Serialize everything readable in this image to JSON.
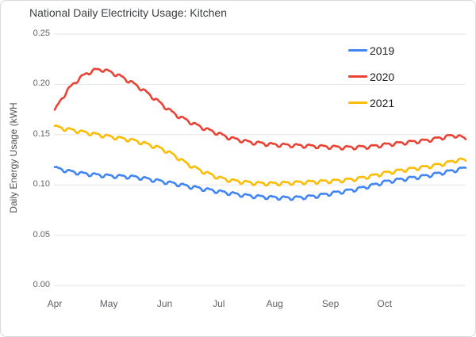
{
  "chart_data": {
    "type": "line",
    "title": "National Daily Electricity Usage: Kitchen",
    "xlabel": "",
    "ylabel": "Daily Energy Usage (kWH",
    "ylim": [
      0,
      0.25
    ],
    "yticks": [
      0,
      0.05,
      0.1,
      0.15,
      0.2,
      0.25
    ],
    "ytick_labels": [
      "0.00",
      "0.05",
      "0.10",
      "0.15",
      "0.20",
      "0.25"
    ],
    "grid": "horizontal",
    "legend_position": "top-right",
    "x_unit": "days since Apr 1",
    "x_range_days": [
      0,
      228
    ],
    "xticks": [
      {
        "label": "Apr",
        "day": 0
      },
      {
        "label": "May",
        "day": 30
      },
      {
        "label": "Jun",
        "day": 61
      },
      {
        "label": "Jul",
        "day": 91
      },
      {
        "label": "Aug",
        "day": 122
      },
      {
        "label": "Sep",
        "day": 153
      },
      {
        "label": "Oct",
        "day": 183
      }
    ],
    "daily_oscillation": {
      "period_days": 7,
      "amplitude": 0.0016
    },
    "colors": {
      "gridline": "#e6e6e6",
      "tick_text": "#5f6368",
      "title_text": "#3c4043",
      "legend_text": "#202124",
      "frame_border": "#d9d9d9"
    },
    "series": [
      {
        "name": "2019",
        "color": "#4285F4",
        "points": [
          [
            0,
            0.117
          ],
          [
            8,
            0.1135
          ],
          [
            15,
            0.1115
          ],
          [
            23,
            0.11
          ],
          [
            30,
            0.109
          ],
          [
            38,
            0.1085
          ],
          [
            45,
            0.1078
          ],
          [
            53,
            0.1055
          ],
          [
            61,
            0.103
          ],
          [
            69,
            0.1005
          ],
          [
            76,
            0.098
          ],
          [
            84,
            0.0955
          ],
          [
            91,
            0.0935
          ],
          [
            99,
            0.0913
          ],
          [
            106,
            0.0895
          ],
          [
            114,
            0.0883
          ],
          [
            122,
            0.0875
          ],
          [
            130,
            0.087
          ],
          [
            137,
            0.0876
          ],
          [
            145,
            0.089
          ],
          [
            153,
            0.0915
          ],
          [
            161,
            0.0938
          ],
          [
            168,
            0.096
          ],
          [
            176,
            0.0995
          ],
          [
            183,
            0.103
          ],
          [
            191,
            0.1052
          ],
          [
            198,
            0.107
          ],
          [
            206,
            0.109
          ],
          [
            214,
            0.1118
          ],
          [
            221,
            0.1142
          ],
          [
            228,
            0.117
          ]
        ]
      },
      {
        "name": "2020",
        "color": "#EA4335",
        "points": [
          [
            0,
            0.174
          ],
          [
            4,
            0.186
          ],
          [
            7,
            0.194
          ],
          [
            11,
            0.2015
          ],
          [
            14,
            0.2065
          ],
          [
            18,
            0.211
          ],
          [
            22,
            0.2142
          ],
          [
            26,
            0.2148
          ],
          [
            30,
            0.2128
          ],
          [
            34,
            0.21
          ],
          [
            38,
            0.2065
          ],
          [
            43,
            0.2015
          ],
          [
            47,
            0.197
          ],
          [
            52,
            0.1905
          ],
          [
            56,
            0.185
          ],
          [
            61,
            0.178
          ],
          [
            65,
            0.1725
          ],
          [
            69,
            0.168
          ],
          [
            73,
            0.1645
          ],
          [
            78,
            0.16
          ],
          [
            84,
            0.1555
          ],
          [
            87,
            0.1535
          ],
          [
            91,
            0.151
          ],
          [
            95,
            0.148
          ],
          [
            99,
            0.146
          ],
          [
            103,
            0.1445
          ],
          [
            108,
            0.1425
          ],
          [
            114,
            0.1415
          ],
          [
            122,
            0.14
          ],
          [
            130,
            0.1395
          ],
          [
            137,
            0.139
          ],
          [
            145,
            0.1385
          ],
          [
            153,
            0.1378
          ],
          [
            161,
            0.1372
          ],
          [
            168,
            0.1375
          ],
          [
            176,
            0.1382
          ],
          [
            183,
            0.14
          ],
          [
            191,
            0.1415
          ],
          [
            198,
            0.1428
          ],
          [
            206,
            0.1442
          ],
          [
            214,
            0.1468
          ],
          [
            219,
            0.1486
          ],
          [
            223,
            0.1492
          ],
          [
            226,
            0.1472
          ],
          [
            228,
            0.1455
          ]
        ]
      },
      {
        "name": "2021",
        "color": "#FBBC04",
        "points": [
          [
            0,
            0.158
          ],
          [
            5,
            0.156
          ],
          [
            10,
            0.1545
          ],
          [
            15,
            0.1527
          ],
          [
            20,
            0.1512
          ],
          [
            25,
            0.1497
          ],
          [
            30,
            0.1482
          ],
          [
            36,
            0.1465
          ],
          [
            42,
            0.1448
          ],
          [
            46,
            0.1432
          ],
          [
            50,
            0.1412
          ],
          [
            54,
            0.139
          ],
          [
            58,
            0.1368
          ],
          [
            61,
            0.1345
          ],
          [
            65,
            0.1308
          ],
          [
            69,
            0.1262
          ],
          [
            73,
            0.1215
          ],
          [
            78,
            0.1168
          ],
          [
            82,
            0.1135
          ],
          [
            87,
            0.11
          ],
          [
            91,
            0.1072
          ],
          [
            95,
            0.1055
          ],
          [
            99,
            0.1042
          ],
          [
            104,
            0.103
          ],
          [
            110,
            0.102
          ],
          [
            116,
            0.1014
          ],
          [
            122,
            0.1014
          ],
          [
            130,
            0.102
          ],
          [
            137,
            0.1026
          ],
          [
            145,
            0.1032
          ],
          [
            153,
            0.1038
          ],
          [
            160,
            0.1046
          ],
          [
            168,
            0.1062
          ],
          [
            172,
            0.1076
          ],
          [
            176,
            0.109
          ],
          [
            183,
            0.1118
          ],
          [
            187,
            0.113
          ],
          [
            191,
            0.1142
          ],
          [
            198,
            0.116
          ],
          [
            206,
            0.118
          ],
          [
            214,
            0.1204
          ],
          [
            219,
            0.1226
          ],
          [
            223,
            0.1246
          ],
          [
            226,
            0.125
          ],
          [
            228,
            0.124
          ]
        ]
      }
    ]
  }
}
